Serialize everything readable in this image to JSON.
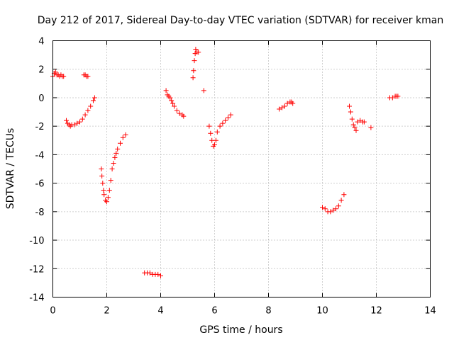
{
  "chart_data": {
    "type": "scatter",
    "title": "Day 212 of 2017, Sidereal Day-to-day VTEC variation (SDTVAR) for receiver kman",
    "xlabel": "GPS time / hours",
    "ylabel": "SDTVAR / TECUs",
    "xlim": [
      0,
      14
    ],
    "ylim": [
      -14,
      4
    ],
    "x_ticks": [
      "0",
      "2",
      "4",
      "6",
      "8",
      "10",
      "12",
      "14"
    ],
    "y_ticks": [
      "-14",
      "-12",
      "-10",
      "-8",
      "-6",
      "-4",
      "-2",
      "0",
      "2",
      "4"
    ],
    "grid": true,
    "marker": "+",
    "colors": {
      "points": "#ff0000",
      "frame": "#000000",
      "grid": "#a0a0a0"
    },
    "series": [
      {
        "name": "seg-1",
        "x": [
          0.0,
          0.05,
          0.1,
          0.15,
          0.2,
          0.25,
          0.3,
          0.35,
          0.4
        ],
        "y": [
          1.5,
          1.7,
          1.8,
          1.6,
          1.6,
          1.5,
          1.6,
          1.5,
          1.5
        ]
      },
      {
        "name": "seg-2",
        "x": [
          0.5,
          0.55,
          0.6,
          0.65,
          0.7,
          0.8,
          0.9,
          1.0,
          1.1,
          1.2,
          1.3,
          1.4,
          1.5,
          1.55
        ],
        "y": [
          -1.6,
          -1.8,
          -1.9,
          -2.0,
          -1.9,
          -1.9,
          -1.8,
          -1.7,
          -1.5,
          -1.2,
          -0.9,
          -0.6,
          -0.2,
          0.0
        ]
      },
      {
        "name": "seg-3",
        "x": [
          1.15,
          1.2,
          1.25,
          1.3
        ],
        "y": [
          1.6,
          1.6,
          1.5,
          1.5
        ]
      },
      {
        "name": "seg-4",
        "x": [
          1.8,
          1.82,
          1.85,
          1.88,
          1.9,
          1.95,
          2.0,
          2.05,
          2.1,
          2.15,
          2.2,
          2.25,
          2.3,
          2.35,
          2.4,
          2.5,
          2.6,
          2.7
        ],
        "y": [
          -5.0,
          -5.5,
          -6.0,
          -6.5,
          -6.8,
          -7.2,
          -7.3,
          -7.0,
          -6.5,
          -5.8,
          -5.0,
          -4.6,
          -4.2,
          -3.9,
          -3.6,
          -3.2,
          -2.8,
          -2.6
        ]
      },
      {
        "name": "seg-5",
        "x": [
          3.4,
          3.5,
          3.6,
          3.7,
          3.8,
          3.9,
          4.0
        ],
        "y": [
          -12.3,
          -12.3,
          -12.3,
          -12.4,
          -12.4,
          -12.4,
          -12.5
        ]
      },
      {
        "name": "seg-6",
        "x": [
          4.2,
          4.25,
          4.3,
          4.35,
          4.4,
          4.45,
          4.5,
          4.6,
          4.7,
          4.8,
          4.85
        ],
        "y": [
          0.5,
          0.2,
          0.1,
          0.0,
          -0.2,
          -0.4,
          -0.6,
          -0.9,
          -1.1,
          -1.2,
          -1.3
        ]
      },
      {
        "name": "seg-7",
        "x": [
          5.2,
          5.22,
          5.25,
          5.28,
          5.3,
          5.35,
          5.4
        ],
        "y": [
          1.4,
          1.9,
          2.6,
          3.1,
          3.4,
          3.2,
          3.2
        ]
      },
      {
        "name": "seg-8",
        "x": [
          5.6
        ],
        "y": [
          0.5
        ]
      },
      {
        "name": "seg-9",
        "x": [
          5.8,
          5.85,
          5.9,
          5.95,
          6.0,
          6.05,
          6.1,
          6.2,
          6.3,
          6.4,
          6.5,
          6.6
        ],
        "y": [
          -2.0,
          -2.5,
          -3.0,
          -3.4,
          -3.3,
          -3.0,
          -2.4,
          -2.0,
          -1.8,
          -1.6,
          -1.4,
          -1.2
        ]
      },
      {
        "name": "seg-10",
        "x": [
          8.4,
          8.5,
          8.6,
          8.7,
          8.8,
          8.85,
          8.9
        ],
        "y": [
          -0.8,
          -0.7,
          -0.6,
          -0.4,
          -0.3,
          -0.3,
          -0.4
        ]
      },
      {
        "name": "seg-11",
        "x": [
          10.0,
          10.1,
          10.2,
          10.3,
          10.4,
          10.5,
          10.6,
          10.7,
          10.8
        ],
        "y": [
          -7.7,
          -7.8,
          -8.0,
          -8.0,
          -7.9,
          -7.8,
          -7.6,
          -7.2,
          -6.8
        ]
      },
      {
        "name": "seg-12",
        "x": [
          11.0,
          11.05,
          11.1,
          11.15,
          11.2,
          11.25,
          11.3,
          11.4,
          11.5,
          11.55
        ],
        "y": [
          -0.6,
          -1.0,
          -1.5,
          -1.9,
          -2.1,
          -2.3,
          -1.7,
          -1.6,
          -1.7,
          -1.7
        ]
      },
      {
        "name": "seg-13",
        "x": [
          11.8
        ],
        "y": [
          -2.1
        ]
      },
      {
        "name": "seg-14",
        "x": [
          12.5,
          12.6,
          12.7,
          12.75,
          12.8
        ],
        "y": [
          0.0,
          0.0,
          0.1,
          0.1,
          0.1
        ]
      }
    ]
  }
}
